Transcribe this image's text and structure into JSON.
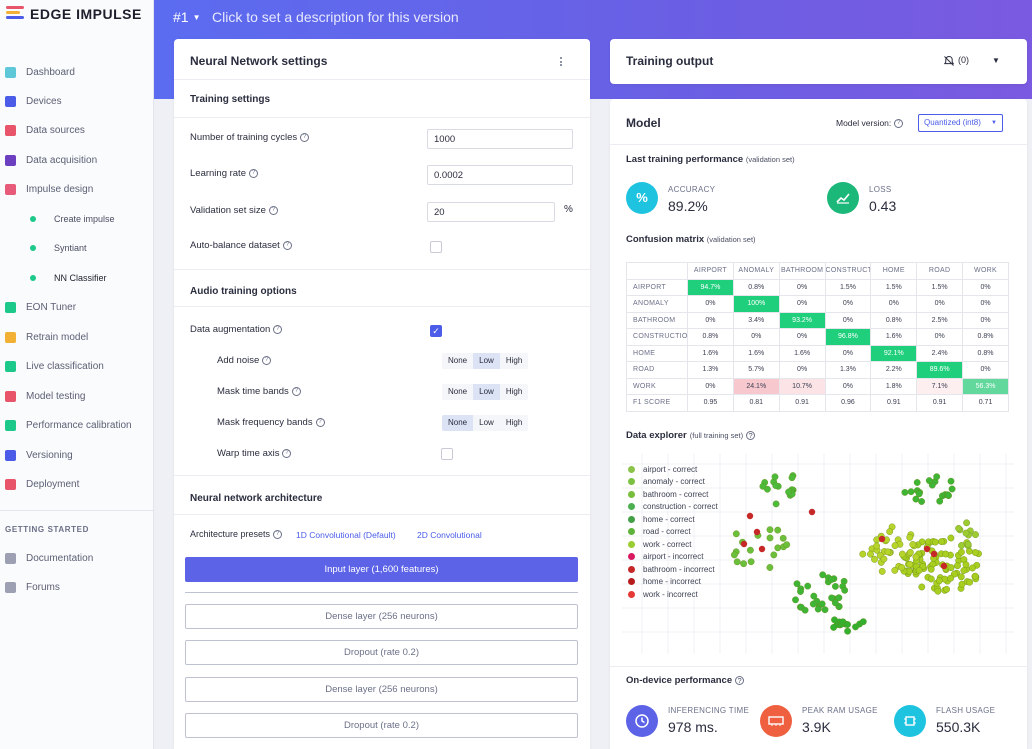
{
  "app": {
    "logo_text": "EDGE IMPULSE"
  },
  "header": {
    "version": "#1",
    "description": "Click to set a description for this version"
  },
  "sidebar": {
    "items": [
      {
        "label": "Dashboard",
        "icon": "monitor-icon",
        "color": "#5ec8d8"
      },
      {
        "label": "Devices",
        "icon": "device-icon",
        "color": "#4a5ce8"
      },
      {
        "label": "Data sources",
        "icon": "wand-icon",
        "color": "#e8556b"
      },
      {
        "label": "Data acquisition",
        "icon": "database-icon",
        "color": "#6b3fbf"
      },
      {
        "label": "Impulse design",
        "icon": "pulse-icon",
        "color": "#e85a7a"
      }
    ],
    "sub_items": [
      {
        "label": "Create impulse"
      },
      {
        "label": "Syntiant"
      },
      {
        "label": "NN Classifier"
      }
    ],
    "items2": [
      {
        "label": "EON Tuner",
        "icon": "tuner-icon",
        "color": "#1cc88a"
      },
      {
        "label": "Retrain model",
        "icon": "shuffle-icon",
        "color": "#f2b134"
      },
      {
        "label": "Live classification",
        "icon": "live-icon",
        "color": "#1cc88a"
      },
      {
        "label": "Model testing",
        "icon": "clipboard-icon",
        "color": "#e8556b"
      },
      {
        "label": "Performance calibration",
        "icon": "chart-icon",
        "color": "#1cc88a"
      },
      {
        "label": "Versioning",
        "icon": "branch-icon",
        "color": "#4a5ce8"
      },
      {
        "label": "Deployment",
        "icon": "gift-icon",
        "color": "#e8556b"
      }
    ],
    "getting_started_heading": "GETTING STARTED",
    "getting_started": [
      {
        "label": "Documentation",
        "icon": "doc-icon"
      },
      {
        "label": "Forums",
        "icon": "chat-icon"
      }
    ]
  },
  "nn_settings": {
    "title": "Neural Network settings",
    "menu_icon": "kebab-icon",
    "training_settings_title": "Training settings",
    "cycles_label": "Number of training cycles",
    "cycles_value": "1000",
    "lr_label": "Learning rate",
    "lr_value": "0.0002",
    "val_label": "Validation set size",
    "val_value": "20",
    "val_unit": "%",
    "autobalance_label": "Auto-balance dataset",
    "audio_title": "Audio training options",
    "augmentation_label": "Data augmentation",
    "add_noise_label": "Add noise",
    "mask_time_label": "Mask time bands",
    "mask_freq_label": "Mask frequency bands",
    "warp_label": "Warp time axis",
    "options": [
      "None",
      "Low",
      "High"
    ],
    "arch_title": "Neural network architecture",
    "presets_label": "Architecture presets",
    "preset_1": "1D Convolutional (Default)",
    "preset_2": "2D Convolutional",
    "layers": [
      "Input layer (1,600 features)",
      "Dense layer (256 neurons)",
      "Dropout (rate 0.2)",
      "Dense layer (256 neurons)",
      "Dropout (rate 0.2)"
    ]
  },
  "training_output": {
    "title": "Training output",
    "notification_count": "(0)"
  },
  "model": {
    "title": "Model",
    "version_label": "Model version:",
    "version_select": "Quantized (int8)",
    "last_perf_label": "Last training performance",
    "last_perf_sub": "(validation set)",
    "accuracy_label": "ACCURACY",
    "accuracy_value": "89.2%",
    "loss_label": "LOSS",
    "loss_value": "0.43",
    "cm_label": "Confusion matrix",
    "cm_sub": "(validation set)",
    "cm_columns": [
      "AIRPORT",
      "ANOMALY",
      "BATHROOM",
      "CONSTRUCTION",
      "HOME",
      "ROAD",
      "WORK"
    ],
    "cm_rows": [
      {
        "name": "AIRPORT",
        "cells": [
          "94.7%",
          "0.8%",
          "0%",
          "1.5%",
          "1.5%",
          "1.5%",
          "0%"
        ]
      },
      {
        "name": "ANOMALY",
        "cells": [
          "0%",
          "100%",
          "0%",
          "0%",
          "0%",
          "0%",
          "0%"
        ]
      },
      {
        "name": "BATHROOM",
        "cells": [
          "0%",
          "3.4%",
          "93.2%",
          "0%",
          "0.8%",
          "2.5%",
          "0%"
        ]
      },
      {
        "name": "CONSTRUCTION",
        "cells": [
          "0.8%",
          "0%",
          "0%",
          "96.8%",
          "1.6%",
          "0%",
          "0.8%"
        ]
      },
      {
        "name": "HOME",
        "cells": [
          "1.6%",
          "1.6%",
          "1.6%",
          "0%",
          "92.1%",
          "2.4%",
          "0.8%"
        ]
      },
      {
        "name": "ROAD",
        "cells": [
          "1.3%",
          "5.7%",
          "0%",
          "1.3%",
          "2.2%",
          "89.6%",
          "0%"
        ]
      },
      {
        "name": "WORK",
        "cells": [
          "0%",
          "24.1%",
          "10.7%",
          "0%",
          "1.8%",
          "7.1%",
          "56.3%"
        ]
      },
      {
        "name": "F1 SCORE",
        "cells": [
          "0.95",
          "0.81",
          "0.91",
          "0.96",
          "0.91",
          "0.91",
          "0.71"
        ]
      }
    ],
    "explorer_label": "Data explorer",
    "explorer_sub": "(full training set)",
    "legend": [
      {
        "label": "airport - correct",
        "color": "#8bc34a"
      },
      {
        "label": "anomaly - correct",
        "color": "#7cc142"
      },
      {
        "label": "bathroom - correct",
        "color": "#79bd3c"
      },
      {
        "label": "construction - correct",
        "color": "#4caf50"
      },
      {
        "label": "home - correct",
        "color": "#43a047"
      },
      {
        "label": "road - correct",
        "color": "#5fb33a"
      },
      {
        "label": "work - correct",
        "color": "#9acd32"
      },
      {
        "label": "airport - incorrect",
        "color": "#d81b60"
      },
      {
        "label": "bathroom - incorrect",
        "color": "#c62828"
      },
      {
        "label": "home - incorrect",
        "color": "#b71c1c"
      },
      {
        "label": "work - incorrect",
        "color": "#e53935"
      }
    ],
    "ondevice_label": "On-device performance",
    "inferencing_label": "INFERENCING TIME",
    "inferencing_value": "978 ms.",
    "ram_label": "PEAK RAM USAGE",
    "ram_value": "3.9K",
    "flash_label": "FLASH USAGE",
    "flash_value": "550.3K"
  }
}
